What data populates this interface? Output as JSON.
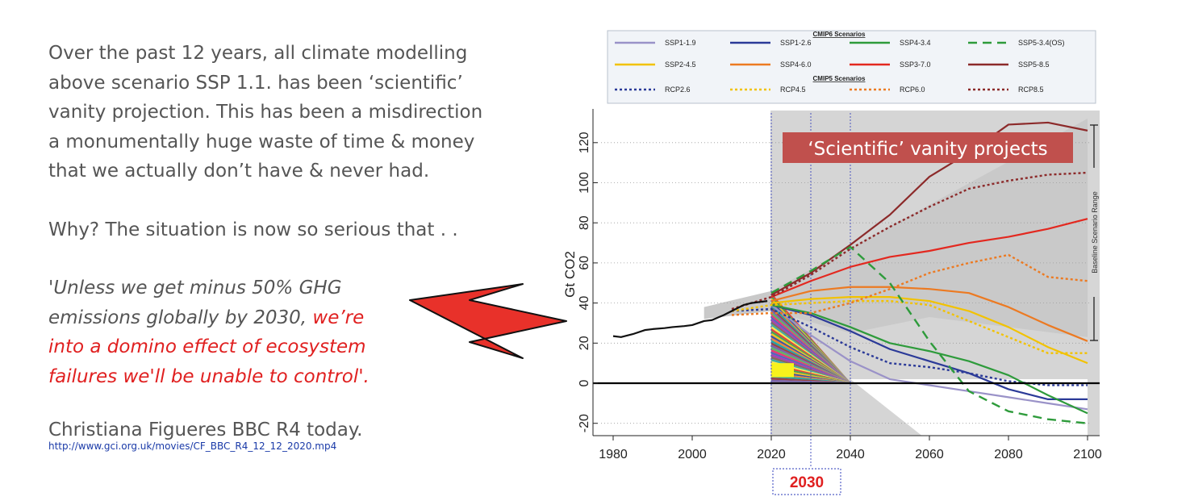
{
  "text": {
    "intro_lines": [
      "Over the past 12 years, all climate modelling",
      "above scenario SSP 1.1. has been ‘scientific’",
      "vanity projection. This has been a misdirection",
      "a monumentally huge waste of time & money",
      "that we actually don’t have & never had."
    ],
    "why_line": "Why? The situation is now so serious that . .",
    "quote_plain_lines": [
      "'Unless we get minus 50% GHG",
      "emissions globally by 2030, "
    ],
    "quote_highlight_first": "we’re",
    "quote_highlight_lines": [
      "into a domino effect of ecosystem",
      "failures we'll be unable to control'."
    ],
    "attribution": "Christiana Figueres BBC R4 today.",
    "link": "http://www.gci.org.uk/movies/CF_BBC_R4_12_12_2020.mp4"
  },
  "chart_data": {
    "type": "line",
    "ylabel": "Gt CO2",
    "xlabel": "",
    "xlim": [
      1977,
      2103
    ],
    "ylim": [
      -26,
      135
    ],
    "xticks": [
      1980,
      2000,
      2020,
      2040,
      2060,
      2080,
      2100
    ],
    "yticks": [
      -20,
      0,
      20,
      40,
      60,
      80,
      100,
      120
    ],
    "legend": {
      "cmip6_title": "CMIP6 Scenarios",
      "cmip5_title": "CMIP5 Scenarios",
      "placement": "top"
    },
    "callout": "‘Scientific’ vanity projects",
    "range_label": "Baseline Scenario Range",
    "year_callout": "2030",
    "historical": {
      "name": "",
      "x": [
        1980,
        1982,
        1985,
        1988,
        1990,
        1993,
        1995,
        1998,
        2000,
        2003,
        2005,
        2008,
        2010,
        2013,
        2015,
        2017,
        2019
      ],
      "y": [
        23.5,
        23,
        24.5,
        26.5,
        27,
        27.5,
        28,
        28.5,
        29,
        31,
        31.5,
        34,
        36,
        39,
        40,
        40.5,
        41
      ]
    },
    "series": [
      {
        "name": "SSP1-1.9",
        "group": "cmip6",
        "color": "#9a92c8",
        "dash": "solid",
        "x": [
          2020,
          2030,
          2040,
          2050,
          2060,
          2070,
          2080,
          2090,
          2100
        ],
        "y": [
          39,
          24,
          11,
          2,
          -1,
          -4,
          -7,
          -10,
          -13
        ]
      },
      {
        "name": "SSP1-2.6",
        "group": "cmip6",
        "color": "#2b3a98",
        "dash": "solid",
        "x": [
          2020,
          2030,
          2040,
          2050,
          2060,
          2070,
          2080,
          2090,
          2100
        ],
        "y": [
          39,
          34,
          26,
          17,
          11,
          5,
          -3,
          -8,
          -8
        ]
      },
      {
        "name": "SSP4-3.4",
        "group": "cmip6",
        "color": "#2e9b3b",
        "dash": "solid",
        "x": [
          2020,
          2030,
          2040,
          2050,
          2060,
          2070,
          2080,
          2090,
          2100
        ],
        "y": [
          39,
          35,
          28,
          20,
          16,
          11,
          4,
          -6,
          -15
        ]
      },
      {
        "name": "SSP5-3.4(OS)",
        "group": "cmip6",
        "color": "#2e9b3b",
        "dash": "dashed",
        "x": [
          2020,
          2030,
          2040,
          2050,
          2060,
          2070,
          2080,
          2090,
          2100
        ],
        "y": [
          45,
          56,
          68,
          50,
          21,
          -4,
          -14,
          -18,
          -20
        ]
      },
      {
        "name": "SSP2-4.5",
        "group": "cmip6",
        "color": "#f2c200",
        "dash": "solid",
        "x": [
          2020,
          2030,
          2040,
          2050,
          2060,
          2070,
          2080,
          2090,
          2100
        ],
        "y": [
          40,
          42,
          43,
          43,
          41,
          36,
          28,
          18,
          10
        ]
      },
      {
        "name": "SSP4-6.0",
        "group": "cmip6",
        "color": "#ec7a22",
        "dash": "solid",
        "x": [
          2020,
          2030,
          2040,
          2050,
          2060,
          2070,
          2080,
          2090,
          2100
        ],
        "y": [
          41,
          46,
          48,
          48,
          47,
          45,
          38,
          29,
          21
        ]
      },
      {
        "name": "SSP3-7.0",
        "group": "cmip6",
        "color": "#e3281f",
        "dash": "solid",
        "x": [
          2020,
          2030,
          2040,
          2050,
          2060,
          2070,
          2080,
          2090,
          2100
        ],
        "y": [
          43,
          51,
          58,
          63,
          66,
          70,
          73,
          77,
          82
        ]
      },
      {
        "name": "SSP5-8.5",
        "group": "cmip6",
        "color": "#8c2a2a",
        "dash": "solid",
        "x": [
          2020,
          2030,
          2040,
          2050,
          2060,
          2070,
          2080,
          2090,
          2100
        ],
        "y": [
          44,
          55,
          69,
          84,
          103,
          115,
          129,
          130,
          126
        ]
      },
      {
        "name": "RCP2.6",
        "group": "cmip5",
        "color": "#2b3a98",
        "dash": "dotted",
        "x": [
          2010,
          2020,
          2030,
          2040,
          2050,
          2060,
          2070,
          2080,
          2090,
          2100
        ],
        "y": [
          36,
          37,
          28,
          18,
          10,
          8,
          5,
          1,
          -1,
          -1
        ]
      },
      {
        "name": "RCP4.5",
        "group": "cmip5",
        "color": "#f2c200",
        "dash": "dotted",
        "x": [
          2010,
          2020,
          2030,
          2040,
          2050,
          2060,
          2070,
          2080,
          2090,
          2100
        ],
        "y": [
          36,
          39,
          40,
          41,
          41,
          39,
          31,
          23,
          15,
          15
        ]
      },
      {
        "name": "RCP6.0",
        "group": "cmip5",
        "color": "#ec7a22",
        "dash": "dotted",
        "x": [
          2010,
          2020,
          2030,
          2040,
          2050,
          2060,
          2070,
          2080,
          2090,
          2100
        ],
        "y": [
          34,
          35,
          35,
          40,
          47,
          55,
          60,
          64,
          53,
          51
        ]
      },
      {
        "name": "RCP8.5",
        "group": "cmip5",
        "color": "#8c2a2a",
        "dash": "dotted",
        "x": [
          2010,
          2020,
          2030,
          2040,
          2050,
          2060,
          2070,
          2080,
          2090,
          2100
        ],
        "y": [
          37,
          43,
          54,
          67,
          78,
          88,
          97,
          101,
          104,
          105
        ]
      }
    ]
  }
}
